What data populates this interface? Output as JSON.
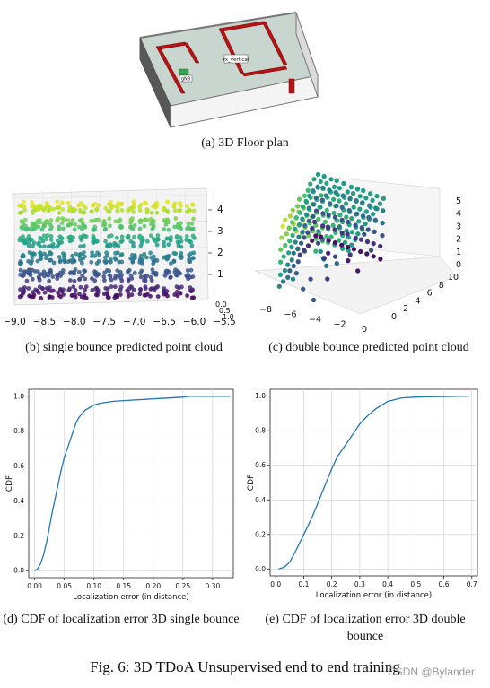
{
  "panel_a": {
    "caption": "(a) 3D Floor plan",
    "labels": {
      "rx": "rx_vertical",
      "tx": "gNB"
    }
  },
  "panel_b": {
    "caption": "(b) single bounce predicted point cloud",
    "x_ticks": [
      "−9.0",
      "−8.5",
      "−8.0",
      "−7.5",
      "−7.0",
      "−6.5",
      "−6.0",
      "−5.5"
    ],
    "z_ticks": [
      "1",
      "2",
      "3",
      "4"
    ],
    "side_ticks": [
      "0.0",
      "0.5",
      "1.0"
    ]
  },
  "panel_c": {
    "caption": "(c) double bounce predicted point cloud",
    "x_ticks": [
      "−8",
      "−6",
      "−4",
      "−2",
      "0"
    ],
    "y_ticks": [
      "0",
      "2",
      "4",
      "6",
      "8",
      "10"
    ],
    "z_ticks": [
      "0",
      "1",
      "2",
      "3",
      "4",
      "5"
    ]
  },
  "panel_d": {
    "caption": "(d) CDF of localization error 3D single bounce"
  },
  "panel_e": {
    "caption": "(e) CDF of localization error 3D double bounce"
  },
  "figure_caption": "Fig. 6: 3D TDoA Unsupervised end to end training",
  "watermark": "CSDN @Bylander",
  "chart_data": [
    {
      "type": "line",
      "panel": "d",
      "xlabel": "Localization error (in distance)",
      "ylabel": "CDF",
      "xlim": [
        -0.01,
        0.335
      ],
      "ylim": [
        -0.04,
        1.04
      ],
      "xticks": [
        0.0,
        0.05,
        0.1,
        0.15,
        0.2,
        0.25,
        0.3
      ],
      "xtick_labels": [
        "0.00",
        "0.05",
        "0.10",
        "0.15",
        "0.20",
        "0.25",
        "0.30"
      ],
      "yticks": [
        0.0,
        0.2,
        0.4,
        0.6,
        0.8,
        1.0
      ],
      "ytick_labels": [
        "0.0",
        "0.2",
        "0.4",
        "0.6",
        "0.8",
        "1.0"
      ],
      "grid": true,
      "series": [
        {
          "x": [
            0.0,
            0.005,
            0.01,
            0.015,
            0.02,
            0.025,
            0.03,
            0.035,
            0.04,
            0.045,
            0.05,
            0.055,
            0.06,
            0.065,
            0.07,
            0.075,
            0.08,
            0.085,
            0.09,
            0.1,
            0.11,
            0.12,
            0.13,
            0.15,
            0.2,
            0.25,
            0.26,
            0.3,
            0.33
          ],
          "y": [
            0.0,
            0.01,
            0.04,
            0.09,
            0.16,
            0.25,
            0.34,
            0.42,
            0.5,
            0.58,
            0.65,
            0.7,
            0.75,
            0.8,
            0.85,
            0.88,
            0.9,
            0.92,
            0.93,
            0.95,
            0.96,
            0.965,
            0.97,
            0.975,
            0.985,
            0.995,
            1.0,
            1.0,
            1.0
          ]
        }
      ]
    },
    {
      "type": "line",
      "panel": "e",
      "xlabel": "Localization error (in distance)",
      "ylabel": "CDF",
      "xlim": [
        -0.02,
        0.72
      ],
      "ylim": [
        -0.04,
        1.04
      ],
      "xticks": [
        0.0,
        0.1,
        0.2,
        0.3,
        0.4,
        0.5,
        0.6,
        0.7
      ],
      "xtick_labels": [
        "0.0",
        "0.1",
        "0.2",
        "0.3",
        "0.4",
        "0.5",
        "0.6",
        "0.7"
      ],
      "yticks": [
        0.0,
        0.2,
        0.4,
        0.6,
        0.8,
        1.0
      ],
      "ytick_labels": [
        "0.0",
        "0.2",
        "0.4",
        "0.6",
        "0.8",
        "1.0"
      ],
      "grid": true,
      "series": [
        {
          "x": [
            0.01,
            0.03,
            0.05,
            0.07,
            0.1,
            0.13,
            0.15,
            0.18,
            0.2,
            0.22,
            0.25,
            0.28,
            0.3,
            0.33,
            0.36,
            0.4,
            0.45,
            0.5,
            0.55,
            0.6,
            0.69
          ],
          "y": [
            0.0,
            0.01,
            0.04,
            0.1,
            0.2,
            0.3,
            0.38,
            0.5,
            0.58,
            0.65,
            0.72,
            0.79,
            0.84,
            0.89,
            0.93,
            0.97,
            0.99,
            0.995,
            0.997,
            0.998,
            1.0
          ]
        }
      ]
    }
  ]
}
